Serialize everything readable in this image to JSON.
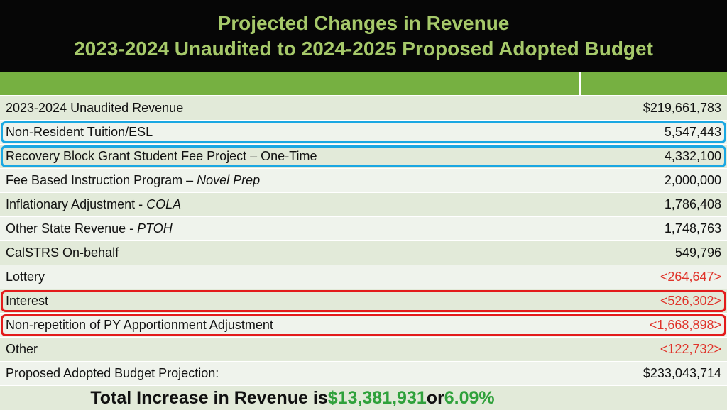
{
  "title": {
    "line1": "Projected Changes in Revenue",
    "line2": "2023-2024 Unaudited to 2024-2025 Proposed Adopted Budget"
  },
  "rows": [
    {
      "label": "2023-2024 Unaudited Revenue",
      "label_em": "",
      "value": "$219,661,783",
      "negative": false,
      "highlight": ""
    },
    {
      "label": "Non-Resident Tuition/ESL",
      "label_em": "",
      "value": "5,547,443",
      "negative": false,
      "highlight": "blue"
    },
    {
      "label": "Recovery Block Grant Student Fee Project – One-Time",
      "label_em": "",
      "value": "4,332,100",
      "negative": false,
      "highlight": "blue"
    },
    {
      "label": "Fee Based Instruction Program – ",
      "label_em": "Novel Prep",
      "value": "2,000,000",
      "negative": false,
      "highlight": ""
    },
    {
      "label": "Inflationary Adjustment - ",
      "label_em": "COLA",
      "value": "1,786,408",
      "negative": false,
      "highlight": ""
    },
    {
      "label": "Other State Revenue - ",
      "label_em": "PTOH",
      "value": "1,748,763",
      "negative": false,
      "highlight": ""
    },
    {
      "label": "CalSTRS On-behalf",
      "label_em": "",
      "value": "549,796",
      "negative": false,
      "highlight": ""
    },
    {
      "label": "Lottery",
      "label_em": "",
      "value": "<264,647>",
      "negative": true,
      "highlight": ""
    },
    {
      "label": "Interest",
      "label_em": "",
      "value": "<526,302>",
      "negative": true,
      "highlight": "red"
    },
    {
      "label": "Non-repetition of PY Apportionment Adjustment",
      "label_em": "",
      "value": "<1,668,898>",
      "negative": true,
      "highlight": "red"
    },
    {
      "label": "Other",
      "label_em": "",
      "value": "<122,732>",
      "negative": true,
      "highlight": ""
    },
    {
      "label": "Proposed Adopted Budget Projection:",
      "label_em": "",
      "value": "$233,043,714",
      "negative": false,
      "highlight": ""
    }
  ],
  "total": {
    "prefix": "Total Increase in Revenue is ",
    "amount": "$13,381,931",
    "middle": " or ",
    "percent": "6.09%"
  },
  "colors": {
    "title_bg": "#060606",
    "title_text": "#a6c96a",
    "header_green": "#76b041",
    "negative": "#e0342b",
    "highlight_blue": "#1aa7e2",
    "highlight_red": "#e31b1b",
    "total_green": "#2fa13b"
  }
}
